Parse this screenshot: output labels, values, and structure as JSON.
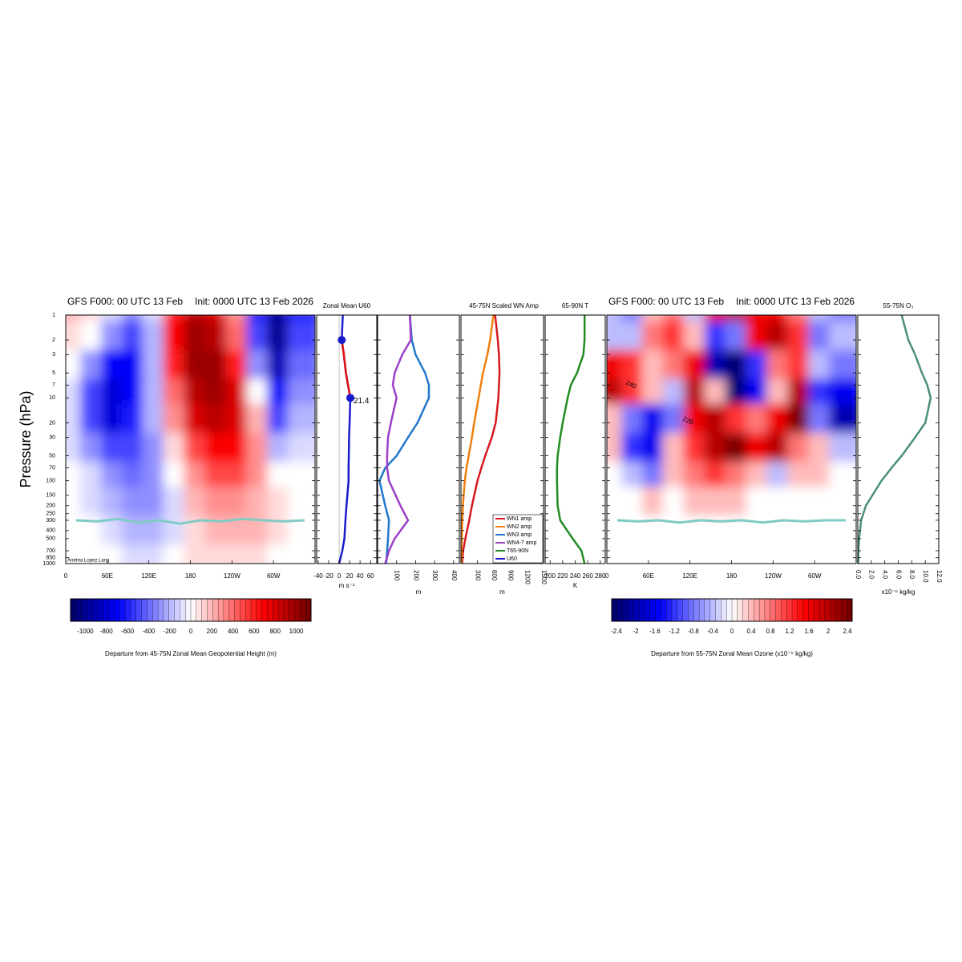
{
  "chart_data": [
    {
      "type": "heatmap",
      "title": "GFS F000: 00 UTC 13 Feb",
      "subtitle": "Init: 0000 UTC 13 Feb 2026",
      "ylabel": "Pressure (hPa)",
      "credit": "Andrea Lopez Lang",
      "log_y": true,
      "xlim": [
        0,
        360
      ],
      "xticks": [
        0,
        {
          "value": 60,
          "label": "60E"
        },
        {
          "value": 120,
          "label": "120E"
        },
        180,
        {
          "value": 240,
          "label": "120W"
        },
        {
          "value": 300,
          "label": "60W"
        }
      ],
      "ylim": [
        1,
        1000
      ],
      "yticks": [
        1,
        2,
        3,
        5,
        7,
        10,
        20,
        30,
        50,
        70,
        100,
        150,
        200,
        250,
        300,
        400,
        500,
        700,
        850,
        1000
      ],
      "x": [
        15,
        45,
        75,
        105,
        135,
        165,
        195,
        225,
        255,
        285,
        315,
        345
      ],
      "levels": [
        1,
        2,
        5,
        10,
        20,
        50,
        100,
        200,
        500,
        1000
      ],
      "z": [
        [
          200,
          100,
          -100,
          -300,
          -100,
          600,
          900,
          800,
          300,
          -600,
          -1000,
          -600
        ],
        [
          100,
          0,
          -300,
          -500,
          -200,
          700,
          1000,
          900,
          400,
          -500,
          -1000,
          -500
        ],
        [
          0,
          -300,
          -700,
          -700,
          -200,
          600,
          1000,
          1000,
          600,
          -300,
          -900,
          -400
        ],
        [
          -100,
          -500,
          -800,
          -700,
          -200,
          400,
          900,
          1000,
          800,
          0,
          -700,
          -300
        ],
        [
          -100,
          -500,
          -800,
          -600,
          -200,
          300,
          800,
          900,
          800,
          200,
          -500,
          -200
        ],
        [
          -100,
          -300,
          -500,
          -500,
          -300,
          100,
          500,
          700,
          700,
          300,
          -200,
          -100
        ],
        [
          0,
          -100,
          -300,
          -400,
          -300,
          0,
          300,
          500,
          500,
          300,
          0,
          0
        ],
        [
          0,
          -100,
          -200,
          -300,
          -300,
          -100,
          200,
          300,
          300,
          200,
          100,
          0
        ],
        [
          0,
          0,
          -100,
          -200,
          -200,
          -100,
          100,
          200,
          200,
          200,
          100,
          0
        ],
        [
          0,
          0,
          0,
          -100,
          -100,
          0,
          100,
          100,
          100,
          100,
          0,
          0
        ]
      ],
      "clim": [
        -1140,
        1140
      ],
      "cticks": [
        -1000,
        -800,
        -600,
        -400,
        -200,
        0,
        200,
        400,
        600,
        800,
        1000
      ],
      "colorbar_label": "Departure from 45-75N Zonal Mean Geopotential Height (m)",
      "tropopause": {
        "color": "#80cbc4",
        "values": [
          300,
          310,
          290,
          320,
          300,
          330,
          300,
          310,
          290,
          300,
          310,
          300
        ]
      }
    },
    {
      "type": "profile",
      "title": "Zonal Mean U60",
      "xlabel": "m s⁻¹",
      "zero_line": true,
      "xlim": [
        -43,
        72
      ],
      "xticks": [
        -40,
        -20,
        0,
        20,
        40,
        60
      ],
      "ylim": [
        1,
        1000
      ],
      "levels": [
        1,
        2,
        3,
        5,
        7,
        10,
        20,
        30,
        50,
        70,
        100,
        200,
        300,
        500,
        700,
        1000
      ],
      "series": [
        {
          "name": "U60",
          "color": "#1a1acd",
          "values": [
            7,
            5,
            9,
            13,
            17,
            21.4,
            20,
            19,
            18.5,
            18,
            18,
            14,
            12,
            10,
            6,
            0
          ],
          "value_labels": [
            null,
            null,
            null,
            null,
            null,
            "21.4",
            null,
            null,
            null,
            null,
            null,
            null,
            null,
            null,
            null,
            null
          ],
          "markers": [
            2,
            10
          ],
          "highlight": {
            "color": "#e01010",
            "from": 2,
            "to": 10
          }
        }
      ]
    },
    {
      "type": "profile",
      "xlabel": "m",
      "xlim": [
        0,
        430
      ],
      "xticks": [
        100,
        200,
        300,
        400
      ],
      "ylim": [
        1,
        1000
      ],
      "levels": [
        1,
        2,
        3,
        5,
        7,
        10,
        20,
        30,
        50,
        70,
        100,
        200,
        300,
        500,
        700,
        1000
      ],
      "series": [
        {
          "name": "WN3 amp",
          "color": "#2277cc",
          "values": [
            170,
            180,
            200,
            250,
            270,
            270,
            210,
            160,
            100,
            40,
            10,
            40,
            60,
            55,
            50,
            45
          ]
        },
        {
          "name": "WN4-7 amp",
          "color": "#9b3fc8",
          "values": [
            170,
            175,
            130,
            90,
            80,
            100,
            70,
            55,
            50,
            50,
            60,
            120,
            160,
            90,
            60,
            40
          ]
        }
      ]
    },
    {
      "type": "profile",
      "title": "45-75N Scaled WN Amp",
      "xlabel": "m",
      "legend": "lower right",
      "xlim": [
        0,
        1500
      ],
      "xticks": [
        300,
        600,
        900,
        1200,
        1500
      ],
      "ylim": [
        1,
        1000
      ],
      "levels": [
        1,
        2,
        3,
        5,
        7,
        10,
        20,
        30,
        50,
        70,
        100,
        200,
        300,
        500,
        700,
        1000
      ],
      "series": [
        {
          "name": "WN1 amp",
          "color": "#d7191c",
          "values": [
            620,
            670,
            690,
            700,
            690,
            680,
            630,
            560,
            440,
            370,
            300,
            200,
            150,
            80,
            40,
            20
          ]
        },
        {
          "name": "WN2 amp",
          "color": "#f07f0e",
          "values": [
            590,
            530,
            480,
            400,
            360,
            320,
            240,
            200,
            140,
            100,
            70,
            35,
            25,
            15,
            10,
            8
          ]
        }
      ]
    },
    {
      "type": "profile",
      "title": "65-90N T",
      "xlabel": "K",
      "xlim": [
        192,
        288
      ],
      "xticks": [
        200,
        220,
        240,
        260,
        280
      ],
      "ylim": [
        1,
        1000
      ],
      "levels": [
        1,
        2,
        3,
        5,
        7,
        10,
        20,
        30,
        50,
        70,
        100,
        200,
        300,
        500,
        700,
        1000
      ],
      "series": [
        {
          "name": "T65-90N",
          "color": "#228b22",
          "values": [
            255,
            255,
            253,
            243,
            233,
            228,
            220,
            216,
            212,
            211,
            211,
            212,
            216,
            236,
            250,
            255
          ]
        }
      ]
    },
    {
      "type": "heatmap",
      "title": "GFS F000: 00 UTC 13 Feb",
      "subtitle": "Init: 0000 UTC 13 Feb 2026",
      "log_y": true,
      "xlim": [
        0,
        360
      ],
      "xticks": [
        0,
        {
          "value": 60,
          "label": "60E"
        },
        {
          "value": 120,
          "label": "120E"
        },
        180,
        {
          "value": 240,
          "label": "120W"
        },
        {
          "value": 300,
          "label": "60W"
        }
      ],
      "ylim": [
        1,
        1000
      ],
      "x": [
        15,
        45,
        75,
        105,
        135,
        165,
        195,
        225,
        255,
        285,
        315,
        345
      ],
      "levels": [
        1,
        2,
        5,
        10,
        20,
        50,
        100,
        200,
        500,
        1000
      ],
      "z": [
        [
          -0.4,
          -0.8,
          0.4,
          0.8,
          -0.4,
          1.6,
          2.0,
          1.6,
          1.6,
          0.8,
          -0.4,
          -0.8
        ],
        [
          -0.4,
          -0.4,
          0.8,
          1.2,
          0.4,
          -1.2,
          -0.8,
          1.6,
          2.0,
          1.2,
          -0.8,
          -0.4
        ],
        [
          1.6,
          1.2,
          0.4,
          0.8,
          1.6,
          -2.0,
          -2.4,
          -1.2,
          0.8,
          1.2,
          -0.4,
          -0.8
        ],
        [
          2.0,
          1.2,
          0.4,
          -0.4,
          2.0,
          0.4,
          -2.4,
          -1.6,
          0.4,
          2.0,
          -1.2,
          -1.6
        ],
        [
          0.4,
          -0.8,
          -1.6,
          -0.8,
          1.6,
          2.0,
          1.2,
          0.8,
          1.6,
          2.4,
          -0.8,
          -2.0
        ],
        [
          0.4,
          -1.2,
          -1.6,
          0.4,
          1.2,
          2.0,
          2.4,
          1.6,
          2.0,
          0.8,
          0.4,
          -0.4
        ],
        [
          0.0,
          -0.4,
          -0.8,
          0.4,
          0.8,
          1.2,
          0.8,
          0.4,
          -0.4,
          0.4,
          0.4,
          0.0
        ],
        [
          0.0,
          0.0,
          0.4,
          0.0,
          0.4,
          0.4,
          0.4,
          0.0,
          0.0,
          0.0,
          0.0,
          0.0
        ],
        [
          0,
          0,
          0,
          0,
          0,
          0,
          0,
          0,
          0,
          0,
          0,
          0
        ],
        [
          0,
          0,
          0,
          0,
          0,
          0,
          0,
          0,
          0,
          0,
          0,
          0
        ]
      ],
      "clim": [
        -2.5,
        2.5
      ],
      "cticks": [
        -2.4,
        -2,
        -1.6,
        -1.2,
        -0.8,
        -0.4,
        0,
        0.4,
        0.8,
        1.2,
        1.6,
        2,
        2.4
      ],
      "colorbar_label": "Departure from 55-75N Zonal Mean Ozone (x10⁻⁶ kg/kg)",
      "contour_labels": [
        240,
        220
      ],
      "tropopause": {
        "color": "#80cbc4",
        "values": [
          300,
          310,
          300,
          320,
          300,
          310,
          300,
          320,
          300,
          310,
          300,
          300
        ]
      }
    },
    {
      "type": "profile",
      "title": "55-75N O₃",
      "xlabel": "x10⁻⁶ kg/kg",
      "xlim": [
        0,
        12
      ],
      "xticks": [
        {
          "value": 0,
          "label": "0.0"
        },
        {
          "value": 2,
          "label": "2.0"
        },
        {
          "value": 4,
          "label": "4.0"
        },
        {
          "value": 6,
          "label": "6.0"
        },
        {
          "value": 8,
          "label": "8.0"
        },
        {
          "value": 10,
          "label": "10.0"
        },
        {
          "value": 12,
          "label": "12.0"
        }
      ],
      "ylim": [
        1,
        1000
      ],
      "levels": [
        1,
        2,
        3,
        5,
        7,
        10,
        20,
        30,
        50,
        70,
        100,
        200,
        300,
        500,
        700,
        1000
      ],
      "series": [
        {
          "name": "O3",
          "color": "#4a8f7a",
          "values": [
            6.5,
            7.5,
            8.5,
            9.5,
            10.3,
            10.8,
            10.0,
            8.5,
            6.5,
            5.0,
            3.5,
            1.2,
            0.5,
            0.2,
            0.1,
            0.05
          ]
        }
      ]
    }
  ]
}
